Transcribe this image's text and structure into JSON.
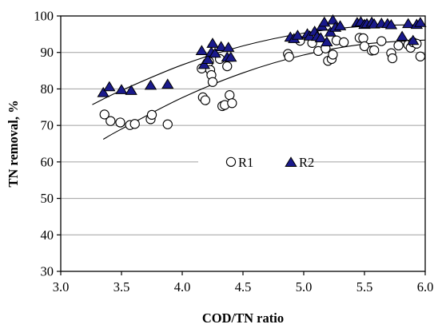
{
  "chart_data": {
    "type": "scatter",
    "xlabel": "COD/TN ratio",
    "ylabel": "TN removal, %",
    "xlim": [
      3.0,
      6.0
    ],
    "ylim": [
      30,
      100
    ],
    "x_ticks": [
      "3.0",
      "3.5",
      "4.0",
      "4.5",
      "5.0",
      "5.5",
      "6.0"
    ],
    "y_ticks": [
      "30",
      "40",
      "50",
      "60",
      "70",
      "80",
      "90",
      "100"
    ],
    "grid": "horizontal",
    "legend_position": "center",
    "colors": {
      "R1_fill": "#ffffff",
      "R1_stroke": "#000000",
      "R2_fill": "#1a1a8c",
      "R2_stroke": "#000000",
      "grid": "#a0a0a0",
      "trend": "#000000"
    },
    "series": [
      {
        "name": "R1",
        "marker": "circle",
        "points": [
          [
            3.36,
            73
          ],
          [
            3.41,
            71.2
          ],
          [
            3.49,
            70.8
          ],
          [
            3.57,
            70.1
          ],
          [
            3.61,
            70.4
          ],
          [
            3.74,
            71.7
          ],
          [
            3.75,
            72.9
          ],
          [
            3.88,
            70.3
          ],
          [
            4.16,
            85.6
          ],
          [
            4.17,
            77.7
          ],
          [
            4.19,
            76.9
          ],
          [
            4.22,
            87.5
          ],
          [
            4.23,
            85.2
          ],
          [
            4.24,
            83.8
          ],
          [
            4.25,
            81.9
          ],
          [
            4.31,
            88.2
          ],
          [
            4.33,
            75.3
          ],
          [
            4.35,
            75.6
          ],
          [
            4.37,
            86.2
          ],
          [
            4.39,
            78.3
          ],
          [
            4.41,
            76.1
          ],
          [
            4.87,
            89.6
          ],
          [
            4.88,
            88.8
          ],
          [
            4.97,
            93.2
          ],
          [
            5.07,
            92.6
          ],
          [
            5.12,
            90.4
          ],
          [
            5.18,
            91.1
          ],
          [
            5.2,
            87.7
          ],
          [
            5.23,
            88.2
          ],
          [
            5.24,
            89.4
          ],
          [
            5.27,
            93.3
          ],
          [
            5.33,
            92.8
          ],
          [
            5.46,
            94.0
          ],
          [
            5.49,
            93.9
          ],
          [
            5.5,
            91.7
          ],
          [
            5.56,
            90.5
          ],
          [
            5.58,
            90.6
          ],
          [
            5.64,
            93.1
          ],
          [
            5.72,
            89.8
          ],
          [
            5.73,
            88.4
          ],
          [
            5.78,
            91.9
          ],
          [
            5.86,
            92.1
          ],
          [
            5.88,
            91.3
          ],
          [
            5.9,
            92.8
          ],
          [
            5.93,
            92.4
          ],
          [
            5.96,
            88.9
          ]
        ]
      },
      {
        "name": "R2",
        "marker": "triangle",
        "points": [
          [
            3.35,
            78.9
          ],
          [
            3.4,
            80.5
          ],
          [
            3.5,
            79.7
          ],
          [
            3.58,
            79.5
          ],
          [
            3.74,
            80.9
          ],
          [
            3.88,
            81.2
          ],
          [
            4.16,
            90.4
          ],
          [
            4.18,
            86.6
          ],
          [
            4.21,
            88.0
          ],
          [
            4.24,
            90.0
          ],
          [
            4.25,
            92.4
          ],
          [
            4.27,
            89.7
          ],
          [
            4.32,
            91.5
          ],
          [
            4.37,
            88.6
          ],
          [
            4.38,
            91.3
          ],
          [
            4.4,
            88.6
          ],
          [
            4.89,
            94.1
          ],
          [
            4.92,
            93.7
          ],
          [
            4.95,
            94.6
          ],
          [
            5.03,
            95.0
          ],
          [
            5.05,
            94.4
          ],
          [
            5.09,
            95.7
          ],
          [
            5.11,
            94.3
          ],
          [
            5.14,
            93.9
          ],
          [
            5.15,
            97.1
          ],
          [
            5.17,
            98.2
          ],
          [
            5.19,
            92.8
          ],
          [
            5.22,
            95.5
          ],
          [
            5.24,
            98.8
          ],
          [
            5.26,
            96.8
          ],
          [
            5.3,
            97.2
          ],
          [
            5.44,
            98.1
          ],
          [
            5.47,
            98.3
          ],
          [
            5.5,
            97.6
          ],
          [
            5.52,
            97.8
          ],
          [
            5.56,
            98.2
          ],
          [
            5.58,
            97.7
          ],
          [
            5.64,
            97.9
          ],
          [
            5.69,
            97.8
          ],
          [
            5.72,
            97.5
          ],
          [
            5.81,
            94.3
          ],
          [
            5.86,
            97.8
          ],
          [
            5.9,
            93.2
          ],
          [
            5.93,
            97.6
          ],
          [
            5.96,
            98.1
          ]
        ]
      }
    ],
    "trendlines": [
      {
        "series": "R2",
        "points": [
          [
            3.26,
            75.7
          ],
          [
            3.5,
            79.6
          ],
          [
            4.0,
            86.6
          ],
          [
            4.5,
            91.8
          ],
          [
            5.0,
            95.3
          ],
          [
            5.5,
            97.2
          ],
          [
            6.0,
            97.6
          ]
        ]
      },
      {
        "series": "R1",
        "points": [
          [
            3.35,
            66.2
          ],
          [
            3.5,
            69.0
          ],
          [
            4.0,
            77.6
          ],
          [
            4.5,
            84.4
          ],
          [
            5.0,
            89.3
          ],
          [
            5.5,
            92.3
          ],
          [
            6.0,
            93.4
          ]
        ]
      }
    ]
  }
}
